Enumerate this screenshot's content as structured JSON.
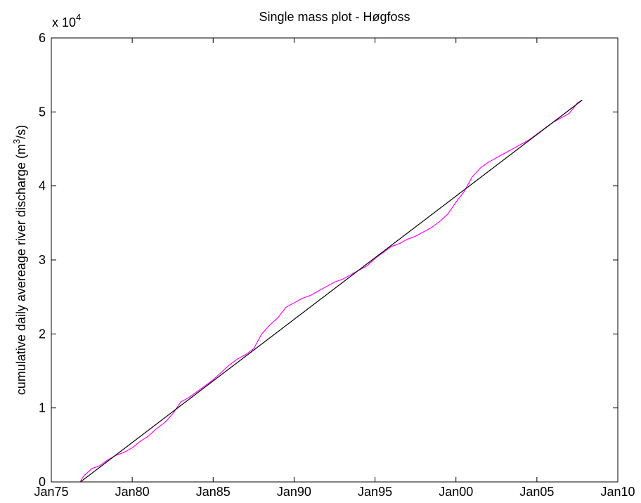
{
  "chart_data": {
    "type": "line",
    "title": "Single mass plot - Høgfoss",
    "xlabel": "",
    "ylabel": "cumulative daily avereage river discharge (m",
    "ylabel_sup": "3",
    "ylabel_tail": "/s)",
    "y_multiplier_base": "x 10",
    "y_multiplier_exp": "4",
    "xlim": [
      1975.0,
      2010.0
    ],
    "ylim": [
      0,
      6
    ],
    "x_ticks": [
      {
        "value": 1975.0,
        "label": "Jan75"
      },
      {
        "value": 1980.0,
        "label": "Jan80"
      },
      {
        "value": 1985.0,
        "label": "Jan85"
      },
      {
        "value": 1990.0,
        "label": "Jan90"
      },
      {
        "value": 1995.0,
        "label": "Jan95"
      },
      {
        "value": 2000.0,
        "label": "Jan00"
      },
      {
        "value": 2005.0,
        "label": "Jan05"
      },
      {
        "value": 2010.0,
        "label": "Jan10"
      }
    ],
    "y_ticks": [
      {
        "value": 0,
        "label": "0"
      },
      {
        "value": 1,
        "label": "1"
      },
      {
        "value": 2,
        "label": "2"
      },
      {
        "value": 3,
        "label": "3"
      },
      {
        "value": 4,
        "label": "4"
      },
      {
        "value": 5,
        "label": "5"
      },
      {
        "value": 6,
        "label": "6"
      }
    ],
    "grid": false,
    "series": [
      {
        "color": "#ff00ff",
        "x": [
          1976.8,
          1977.0,
          1977.5,
          1978.0,
          1978.5,
          1979.0,
          1979.5,
          1980.0,
          1980.5,
          1981.0,
          1981.5,
          1982.0,
          1982.5,
          1983.0,
          1983.5,
          1984.0,
          1984.5,
          1985.0,
          1985.5,
          1986.0,
          1986.5,
          1987.0,
          1987.5,
          1988.0,
          1988.5,
          1989.0,
          1989.5,
          1990.0,
          1990.5,
          1991.0,
          1991.5,
          1992.0,
          1992.5,
          1993.0,
          1993.5,
          1994.0,
          1994.5,
          1995.0,
          1995.5,
          1996.0,
          1996.5,
          1997.0,
          1997.5,
          1998.0,
          1998.5,
          1999.0,
          1999.5,
          2000.0,
          2000.5,
          2001.0,
          2001.5,
          2002.0,
          2002.5,
          2003.0,
          2003.5,
          2004.0,
          2004.5,
          2005.0,
          2005.5,
          2006.0,
          2006.5,
          2007.0,
          2007.5,
          2007.8
        ],
        "y": [
          0.01,
          0.08,
          0.18,
          0.22,
          0.3,
          0.36,
          0.4,
          0.46,
          0.55,
          0.62,
          0.72,
          0.8,
          0.92,
          1.08,
          1.14,
          1.22,
          1.3,
          1.38,
          1.48,
          1.58,
          1.66,
          1.72,
          1.8,
          2.0,
          2.12,
          2.22,
          2.36,
          2.42,
          2.48,
          2.52,
          2.58,
          2.64,
          2.7,
          2.74,
          2.8,
          2.86,
          2.92,
          3.02,
          3.1,
          3.18,
          3.22,
          3.28,
          3.32,
          3.38,
          3.44,
          3.52,
          3.62,
          3.78,
          3.92,
          4.12,
          4.24,
          4.32,
          4.38,
          4.44,
          4.5,
          4.56,
          4.62,
          4.7,
          4.78,
          4.86,
          4.92,
          4.98,
          5.12,
          5.16
        ]
      },
      {
        "color": "#000000",
        "x": [
          1976.8,
          2007.8
        ],
        "y": [
          0.0,
          5.16
        ]
      }
    ]
  }
}
